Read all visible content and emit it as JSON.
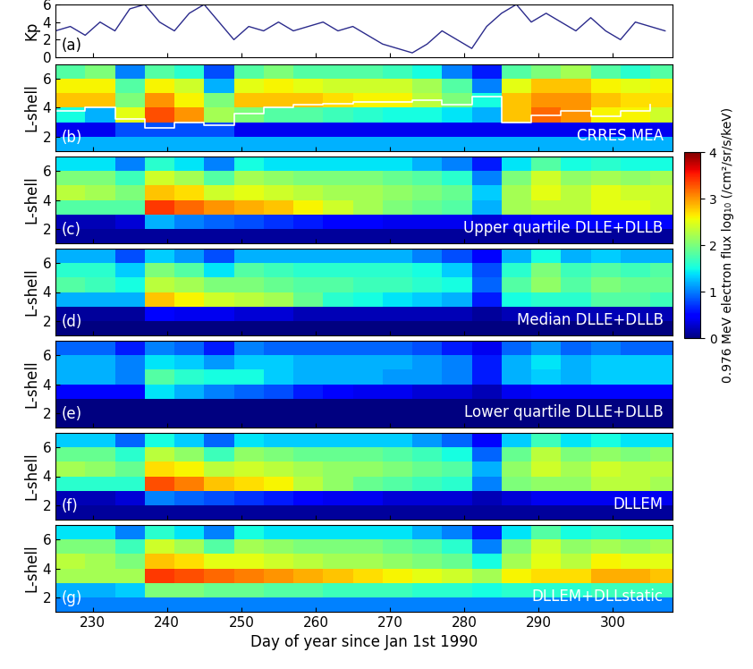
{
  "chart_data": [
    {
      "type": "line",
      "ylabel": "Kp",
      "label": "(a)",
      "color": "#2b2b8c",
      "x": [
        225,
        227,
        229,
        231,
        233,
        235,
        237,
        239,
        241,
        243,
        245,
        247,
        249,
        251,
        253,
        255,
        257,
        259,
        261,
        263,
        265,
        267,
        269,
        271,
        273,
        275,
        277,
        279,
        281,
        283,
        285,
        287,
        289,
        291,
        293,
        295,
        297,
        299,
        301,
        303,
        305,
        307
      ],
      "values": [
        3,
        3.5,
        2.5,
        4,
        3,
        5.5,
        6,
        4,
        3,
        5,
        6,
        4,
        2,
        3.5,
        3,
        4,
        3,
        3.5,
        4,
        3,
        3.5,
        2.5,
        1.5,
        1,
        0.5,
        1.5,
        3,
        2,
        1,
        3.5,
        5,
        6,
        4,
        5,
        4,
        3,
        4.5,
        3,
        2,
        4,
        3.5,
        3
      ],
      "xlim": [
        225,
        308
      ],
      "xticks": [
        230,
        240,
        250,
        260,
        270,
        280,
        290,
        300
      ],
      "ylim": [
        0,
        6
      ],
      "yticks": [
        0,
        2,
        4,
        6
      ],
      "tick_labels": "y"
    },
    {
      "type": "heatmap",
      "ylabel": "L-shell",
      "label": "(b)",
      "annotation": "CRRES MEA",
      "x_edges": [
        225,
        229,
        233,
        237,
        241,
        245,
        249,
        253,
        257,
        261,
        265,
        269,
        273,
        277,
        281,
        285,
        289,
        293,
        297,
        301,
        305,
        309
      ],
      "y_edges": [
        1,
        2,
        3,
        4,
        5,
        6,
        7
      ],
      "cells": [
        [
          1.2,
          1.2,
          1.2,
          1.2,
          1.2,
          1.2,
          1.2,
          1.2,
          1.2,
          1.2,
          1.2,
          1.2,
          1.2,
          1.2,
          1.2,
          1.2,
          1.2,
          1.2,
          1.2,
          1.2,
          1.2
        ],
        [
          0.4,
          0.4,
          0.8,
          0.8,
          0.8,
          0.8,
          0.4,
          0.4,
          0.4,
          0.4,
          0.4,
          0.4,
          0.4,
          0.4,
          0.4,
          0.4,
          0.4,
          0.4,
          0.4,
          0.4,
          0.4
        ],
        [
          1.5,
          1.2,
          2.5,
          3.3,
          3.0,
          2.2,
          2.0,
          1.8,
          1.8,
          1.7,
          1.6,
          1.5,
          1.5,
          1.4,
          1.2,
          2.8,
          3.2,
          3.0,
          2.6,
          2.6,
          2.4
        ],
        [
          2.8,
          2.8,
          2.0,
          3.0,
          2.6,
          2.0,
          2.8,
          2.8,
          2.8,
          2.7,
          2.6,
          2.6,
          2.3,
          2.0,
          1.5,
          2.8,
          3.0,
          3.0,
          2.8,
          2.7,
          2.7
        ],
        [
          2.6,
          2.6,
          1.8,
          2.6,
          2.4,
          1.2,
          2.5,
          2.6,
          2.5,
          2.4,
          2.4,
          2.4,
          2.2,
          1.8,
          1.0,
          2.5,
          2.8,
          2.8,
          2.6,
          2.5,
          2.6
        ],
        [
          1.8,
          2.0,
          1.0,
          1.8,
          1.6,
          0.8,
          1.8,
          2.0,
          1.8,
          1.8,
          1.8,
          1.7,
          1.5,
          1.0,
          0.6,
          1.8,
          2.0,
          2.2,
          1.8,
          1.6,
          1.8
        ]
      ],
      "series": [
        {
          "color": "white",
          "line_style": "steps",
          "x": [
            225,
            229,
            233,
            237,
            241,
            245,
            249,
            253,
            257,
            261,
            265,
            269,
            273,
            277,
            281,
            285,
            289,
            293,
            297,
            301,
            305
          ],
          "values": [
            3.8,
            4.0,
            3.2,
            2.6,
            3.0,
            2.8,
            3.6,
            4.0,
            4.2,
            4.3,
            4.4,
            4.4,
            4.5,
            4.2,
            4.8,
            3.0,
            3.5,
            3.8,
            3.4,
            3.8,
            4.2
          ]
        }
      ],
      "xlim": [
        225,
        308
      ],
      "xticks": [
        230,
        240,
        250,
        260,
        270,
        280,
        290,
        300
      ],
      "ylim": [
        1,
        7
      ],
      "yticks": [
        2,
        4,
        6
      ],
      "tick_labels": "y"
    },
    {
      "type": "heatmap",
      "ylabel": "L-shell",
      "label": "(c)",
      "annotation": "Upper quartile DLLE+DLLB",
      "x_edges": [
        225,
        229,
        233,
        237,
        241,
        245,
        249,
        253,
        257,
        261,
        265,
        269,
        273,
        277,
        281,
        285,
        289,
        293,
        297,
        301,
        305,
        309
      ],
      "y_edges": [
        1,
        2,
        3,
        4,
        5,
        6,
        7
      ],
      "cells": [
        [
          0.1,
          0.1,
          0.1,
          0.1,
          0.1,
          0.1,
          0.1,
          0.1,
          0.1,
          0.1,
          0.1,
          0.1,
          0.1,
          0.1,
          0.1,
          0.1,
          0.1,
          0.1,
          0.1,
          0.1,
          0.1
        ],
        [
          0.2,
          0.2,
          0.3,
          1.2,
          1.0,
          0.9,
          0.8,
          0.7,
          0.6,
          0.5,
          0.5,
          0.4,
          0.4,
          0.4,
          0.3,
          0.4,
          0.5,
          0.5,
          0.5,
          0.5,
          0.5
        ],
        [
          1.8,
          1.8,
          1.8,
          3.4,
          3.2,
          3.0,
          2.9,
          2.8,
          2.6,
          2.4,
          2.2,
          2.0,
          1.9,
          1.8,
          1.2,
          2.2,
          2.3,
          2.3,
          2.5,
          2.5,
          2.4
        ],
        [
          2.3,
          2.2,
          2.0,
          2.8,
          2.7,
          2.4,
          2.5,
          2.4,
          2.3,
          2.2,
          2.2,
          2.1,
          2.0,
          1.9,
          1.3,
          2.2,
          2.5,
          2.3,
          2.5,
          2.4,
          2.4
        ],
        [
          2.0,
          2.0,
          1.7,
          2.4,
          2.2,
          1.8,
          2.2,
          2.1,
          2.0,
          2.0,
          2.0,
          1.9,
          1.8,
          1.6,
          1.0,
          2.0,
          2.4,
          2.1,
          2.2,
          2.1,
          2.2
        ],
        [
          1.4,
          1.4,
          1.0,
          1.6,
          1.4,
          1.0,
          1.5,
          1.4,
          1.4,
          1.4,
          1.4,
          1.4,
          1.2,
          1.0,
          0.6,
          1.4,
          1.8,
          1.5,
          1.6,
          1.5,
          1.5
        ]
      ],
      "xlim": [
        225,
        308
      ],
      "xticks": [
        230,
        240,
        250,
        260,
        270,
        280,
        290,
        300
      ],
      "ylim": [
        1,
        7
      ],
      "yticks": [
        2,
        4,
        6
      ],
      "tick_labels": "y"
    },
    {
      "type": "heatmap",
      "ylabel": "L-shell",
      "label": "(d)",
      "annotation": "Median DLLE+DLLB",
      "x_edges": [
        225,
        229,
        233,
        237,
        241,
        245,
        249,
        253,
        257,
        261,
        265,
        269,
        273,
        277,
        281,
        285,
        289,
        293,
        297,
        301,
        305,
        309
      ],
      "y_edges": [
        1,
        2,
        3,
        4,
        5,
        6,
        7
      ],
      "cells": [
        [
          0.0,
          0.0,
          0.0,
          0.0,
          0.0,
          0.0,
          0.0,
          0.0,
          0.0,
          0.0,
          0.0,
          0.0,
          0.0,
          0.0,
          0.0,
          0.0,
          0.0,
          0.0,
          0.0,
          0.0,
          0.0
        ],
        [
          0.1,
          0.1,
          0.1,
          0.5,
          0.4,
          0.4,
          0.3,
          0.3,
          0.2,
          0.2,
          0.2,
          0.2,
          0.2,
          0.2,
          0.1,
          0.2,
          0.2,
          0.2,
          0.2,
          0.2,
          0.2
        ],
        [
          1.2,
          1.2,
          1.2,
          2.8,
          2.6,
          2.4,
          2.3,
          2.2,
          1.9,
          1.6,
          1.5,
          1.4,
          1.3,
          1.2,
          0.6,
          1.5,
          1.6,
          1.6,
          1.8,
          1.8,
          1.7
        ],
        [
          1.8,
          1.7,
          1.5,
          2.3,
          2.2,
          2.0,
          2.0,
          1.9,
          1.8,
          1.8,
          1.7,
          1.7,
          1.6,
          1.5,
          0.9,
          1.8,
          2.1,
          1.8,
          2.0,
          1.9,
          1.9
        ],
        [
          1.6,
          1.6,
          1.3,
          2.0,
          1.8,
          1.4,
          1.8,
          1.7,
          1.6,
          1.6,
          1.6,
          1.6,
          1.5,
          1.3,
          0.8,
          1.6,
          2.0,
          1.7,
          1.8,
          1.7,
          1.8
        ],
        [
          1.2,
          1.2,
          0.8,
          1.3,
          1.1,
          0.8,
          1.2,
          1.2,
          1.2,
          1.2,
          1.2,
          1.2,
          1.0,
          0.8,
          0.5,
          1.2,
          1.5,
          1.2,
          1.3,
          1.2,
          1.2
        ]
      ],
      "xlim": [
        225,
        308
      ],
      "xticks": [
        230,
        240,
        250,
        260,
        270,
        280,
        290,
        300
      ],
      "ylim": [
        1,
        7
      ],
      "yticks": [
        2,
        4,
        6
      ],
      "tick_labels": "y"
    },
    {
      "type": "heatmap",
      "ylabel": "L-shell",
      "label": "(e)",
      "annotation": "Lower quartile DLLE+DLLB",
      "x_edges": [
        225,
        229,
        233,
        237,
        241,
        245,
        249,
        253,
        257,
        261,
        265,
        269,
        273,
        277,
        281,
        285,
        289,
        293,
        297,
        301,
        305,
        309
      ],
      "y_edges": [
        1,
        2,
        3,
        4,
        5,
        6,
        7
      ],
      "cells": [
        [
          0.0,
          0.0,
          0.0,
          0.0,
          0.0,
          0.0,
          0.0,
          0.0,
          0.0,
          0.0,
          0.0,
          0.0,
          0.0,
          0.0,
          0.0,
          0.0,
          0.0,
          0.0,
          0.0,
          0.0,
          0.0
        ],
        [
          0.0,
          0.0,
          0.0,
          0.0,
          0.0,
          0.0,
          0.0,
          0.0,
          0.0,
          0.0,
          0.0,
          0.0,
          0.0,
          0.0,
          0.0,
          0.0,
          0.0,
          0.0,
          0.0,
          0.0,
          0.0
        ],
        [
          0.5,
          0.5,
          0.5,
          1.4,
          1.2,
          1.0,
          0.9,
          0.8,
          0.6,
          0.5,
          0.4,
          0.4,
          0.3,
          0.3,
          0.2,
          0.4,
          0.5,
          0.5,
          0.5,
          0.5,
          0.5
        ],
        [
          1.2,
          1.2,
          1.0,
          1.8,
          1.6,
          1.5,
          1.5,
          1.3,
          1.2,
          1.2,
          1.2,
          1.1,
          1.1,
          1.0,
          0.6,
          1.2,
          1.3,
          1.2,
          1.3,
          1.3,
          1.3
        ],
        [
          1.2,
          1.2,
          1.0,
          1.4,
          1.3,
          1.1,
          1.3,
          1.3,
          1.2,
          1.2,
          1.2,
          1.2,
          1.1,
          1.0,
          0.6,
          1.2,
          1.4,
          1.2,
          1.3,
          1.3,
          1.3
        ],
        [
          0.9,
          0.9,
          0.6,
          1.0,
          0.9,
          0.6,
          1.0,
          0.9,
          0.9,
          0.9,
          0.9,
          0.9,
          0.8,
          0.6,
          0.4,
          0.9,
          1.1,
          0.9,
          1.0,
          0.9,
          0.9
        ]
      ],
      "xlim": [
        225,
        308
      ],
      "xticks": [
        230,
        240,
        250,
        260,
        270,
        280,
        290,
        300
      ],
      "ylim": [
        1,
        7
      ],
      "yticks": [
        2,
        4,
        6
      ],
      "tick_labels": "y"
    },
    {
      "type": "heatmap",
      "ylabel": "L-shell",
      "label": "(f)",
      "annotation": "DLLEM",
      "x_edges": [
        225,
        229,
        233,
        237,
        241,
        245,
        249,
        253,
        257,
        261,
        265,
        269,
        273,
        277,
        281,
        285,
        289,
        293,
        297,
        301,
        305,
        309
      ],
      "y_edges": [
        1,
        2,
        3,
        4,
        5,
        6,
        7
      ],
      "cells": [
        [
          0.1,
          0.1,
          0.1,
          0.1,
          0.1,
          0.1,
          0.1,
          0.1,
          0.1,
          0.1,
          0.1,
          0.1,
          0.1,
          0.1,
          0.1,
          0.1,
          0.1,
          0.1,
          0.1,
          0.1,
          0.1
        ],
        [
          0.2,
          0.2,
          0.3,
          1.0,
          0.9,
          0.8,
          0.7,
          0.6,
          0.5,
          0.4,
          0.4,
          0.3,
          0.3,
          0.3,
          0.2,
          0.3,
          0.4,
          0.4,
          0.4,
          0.4,
          0.4
        ],
        [
          1.6,
          1.6,
          1.6,
          3.3,
          3.1,
          2.8,
          2.7,
          2.6,
          2.3,
          2.1,
          1.9,
          1.8,
          1.7,
          1.6,
          1.0,
          2.0,
          2.1,
          2.1,
          2.3,
          2.3,
          2.2
        ],
        [
          2.2,
          2.1,
          1.9,
          2.7,
          2.6,
          2.3,
          2.4,
          2.3,
          2.2,
          2.1,
          2.1,
          2.0,
          1.9,
          1.8,
          1.2,
          2.1,
          2.4,
          2.2,
          2.4,
          2.3,
          2.3
        ],
        [
          1.9,
          1.9,
          1.6,
          2.3,
          2.1,
          1.7,
          2.1,
          2.0,
          1.9,
          1.9,
          1.9,
          1.8,
          1.7,
          1.5,
          0.9,
          1.9,
          2.3,
          2.0,
          2.1,
          2.0,
          2.1
        ],
        [
          1.3,
          1.3,
          0.9,
          1.5,
          1.3,
          0.9,
          1.4,
          1.3,
          1.3,
          1.3,
          1.3,
          1.3,
          1.1,
          0.9,
          0.5,
          1.3,
          1.7,
          1.4,
          1.5,
          1.4,
          1.4
        ]
      ],
      "xlim": [
        225,
        308
      ],
      "xticks": [
        230,
        240,
        250,
        260,
        270,
        280,
        290,
        300
      ],
      "ylim": [
        1,
        7
      ],
      "yticks": [
        2,
        4,
        6
      ],
      "tick_labels": "y"
    },
    {
      "type": "heatmap",
      "ylabel": "L-shell",
      "label": "(g)",
      "annotation": "DLLEM+DLLstatic",
      "xlabel": "Day of year since Jan 1st 1990",
      "x_edges": [
        225,
        229,
        233,
        237,
        241,
        245,
        249,
        253,
        257,
        261,
        265,
        269,
        273,
        277,
        281,
        285,
        289,
        293,
        297,
        301,
        305,
        309
      ],
      "y_edges": [
        1,
        2,
        3,
        4,
        5,
        6,
        7
      ],
      "cells": [
        [
          1.0,
          1.0,
          1.0,
          1.0,
          1.0,
          1.0,
          1.0,
          1.0,
          1.0,
          1.0,
          1.0,
          1.0,
          1.0,
          1.0,
          1.0,
          1.0,
          1.0,
          1.0,
          1.0,
          1.0,
          1.0
        ],
        [
          1.2,
          1.2,
          1.3,
          2.0,
          2.0,
          1.9,
          1.9,
          1.8,
          1.8,
          1.7,
          1.7,
          1.7,
          1.6,
          1.6,
          1.5,
          1.6,
          1.6,
          1.6,
          1.7,
          1.7,
          1.7
        ],
        [
          2.2,
          2.2,
          2.2,
          3.4,
          3.3,
          3.2,
          3.1,
          3.0,
          2.9,
          2.8,
          2.7,
          2.6,
          2.5,
          2.4,
          2.2,
          2.6,
          2.7,
          2.7,
          2.9,
          2.9,
          2.8
        ],
        [
          2.3,
          2.2,
          2.0,
          2.8,
          2.7,
          2.5,
          2.5,
          2.4,
          2.3,
          2.2,
          2.2,
          2.1,
          2.0,
          1.9,
          1.5,
          2.2,
          2.5,
          2.3,
          2.6,
          2.5,
          2.5
        ],
        [
          2.0,
          2.0,
          1.7,
          2.4,
          2.2,
          1.8,
          2.2,
          2.1,
          2.0,
          2.0,
          2.0,
          1.9,
          1.8,
          1.6,
          1.0,
          2.0,
          2.4,
          2.1,
          2.2,
          2.1,
          2.2
        ],
        [
          1.4,
          1.4,
          1.0,
          1.6,
          1.4,
          1.0,
          1.5,
          1.4,
          1.4,
          1.4,
          1.4,
          1.4,
          1.2,
          1.0,
          0.6,
          1.4,
          1.8,
          1.5,
          1.6,
          1.5,
          1.5
        ]
      ],
      "xlim": [
        225,
        308
      ],
      "xticks": [
        230,
        240,
        250,
        260,
        270,
        280,
        290,
        300
      ],
      "ylim": [
        1,
        7
      ],
      "yticks": [
        2,
        4,
        6
      ]
    }
  ],
  "colorbar": {
    "label": "0.976 MeV electron flux log₁₀ (/cm²/sr/s/keV)",
    "range": [
      0,
      4
    ],
    "ticks": [
      0,
      1,
      2,
      3,
      4
    ]
  }
}
